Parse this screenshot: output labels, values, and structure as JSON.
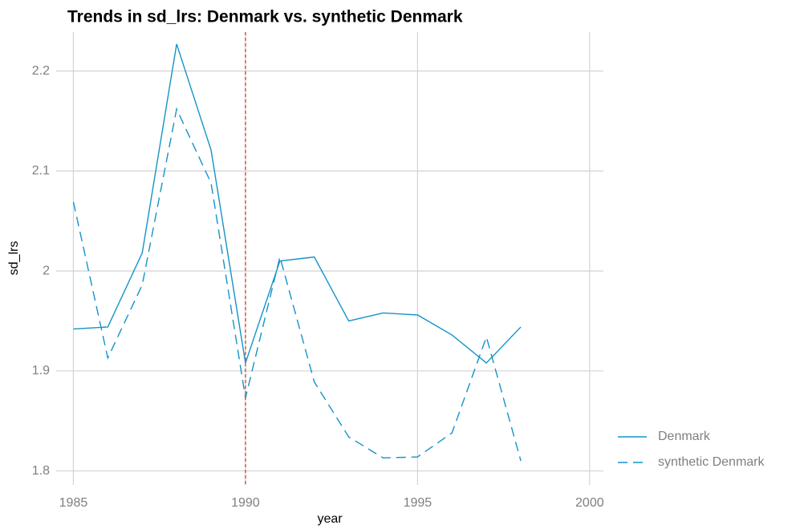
{
  "chart_data": {
    "type": "line",
    "title": "Trends in sd_lrs: Denmark vs. synthetic Denmark",
    "x_label": "year",
    "y_label": "sd_lrs",
    "x": [
      1985,
      1986,
      1987,
      1988,
      1989,
      1990,
      1991,
      1992,
      1993,
      1994,
      1995,
      1996,
      1997,
      1998
    ],
    "series": [
      {
        "name": "Denmark",
        "color": "#1493c9",
        "linestyle": "solid",
        "values": [
          1.942,
          1.944,
          2.018,
          2.227,
          2.121,
          1.908,
          2.01,
          2.014,
          1.95,
          1.958,
          1.956,
          1.936,
          1.908,
          1.944
        ]
      },
      {
        "name": "synthetic Denmark",
        "color": "#1493c9",
        "linestyle": "dashed",
        "values": [
          2.069,
          1.913,
          1.986,
          2.162,
          2.088,
          1.873,
          2.014,
          1.889,
          1.834,
          1.813,
          1.814,
          1.838,
          1.934,
          1.81
        ]
      }
    ],
    "vline": 1990,
    "vline_color": "#e8432d",
    "xlim": [
      1984.5,
      2000.4
    ],
    "xticks": [
      1985,
      1990,
      1995,
      2000
    ],
    "ylim": [
      1.786,
      2.239
    ],
    "yticks": [
      1.8,
      1.9,
      2,
      2.1,
      2.2
    ],
    "grid": true,
    "legend": "right"
  }
}
